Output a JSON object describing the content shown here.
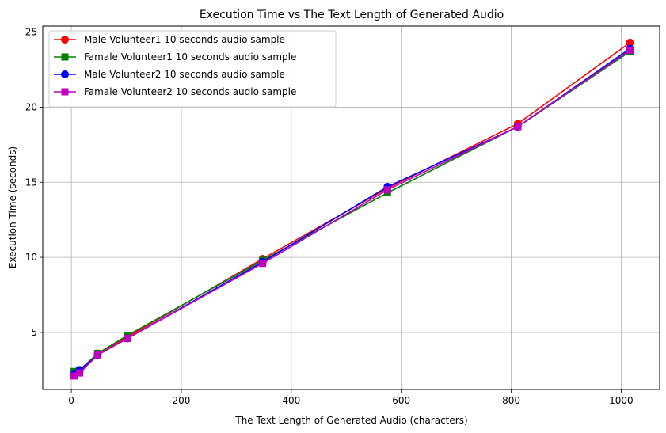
{
  "chart_data": {
    "type": "line",
    "title": "Execution Time vs The Text Length of Generated Audio",
    "xlabel": "The Text Length of Generated Audio (characters)",
    "ylabel": "Execution Time (seconds)",
    "xlim": [
      -52,
      1070
    ],
    "ylim": [
      1.2,
      25.4
    ],
    "xticks": [
      0,
      200,
      400,
      600,
      800,
      1000
    ],
    "yticks": [
      5,
      10,
      15,
      20,
      25
    ],
    "xtick_labels": [
      "0",
      "200",
      "400",
      "600",
      "800",
      "1000"
    ],
    "ytick_labels": [
      "5",
      "10",
      "15",
      "20",
      "25"
    ],
    "grid": true,
    "legend_position": "top-left",
    "series": [
      {
        "name": "Male Volunteer1 10 seconds audio sample",
        "color": "#ff0000",
        "marker": "circle",
        "x": [
          5,
          15,
          48,
          102,
          348,
          575,
          812,
          1016
        ],
        "y": [
          2.2,
          2.4,
          3.6,
          4.7,
          9.9,
          14.6,
          18.9,
          24.3
        ]
      },
      {
        "name": "Famale Volunteer1 10 seconds audio sample",
        "color": "#008000",
        "marker": "square",
        "x": [
          5,
          15,
          48,
          102,
          348,
          575,
          812,
          1016
        ],
        "y": [
          2.4,
          2.5,
          3.6,
          4.8,
          9.8,
          14.3,
          18.7,
          23.7
        ]
      },
      {
        "name": "Male Volunteer2 10 seconds audio sample",
        "color": "#0000ff",
        "marker": "circle",
        "x": [
          5,
          15,
          48,
          102,
          348,
          575,
          812,
          1016
        ],
        "y": [
          2.2,
          2.5,
          3.5,
          4.6,
          9.7,
          14.7,
          18.7,
          23.9
        ]
      },
      {
        "name": "Famale Volunteer2 10 seconds audio sample",
        "color": "#bf00bf",
        "marker": "square",
        "x": [
          5,
          15,
          48,
          102,
          348,
          575,
          812,
          1016
        ],
        "y": [
          2.1,
          2.3,
          3.5,
          4.6,
          9.6,
          14.5,
          18.7,
          23.8
        ]
      }
    ]
  }
}
